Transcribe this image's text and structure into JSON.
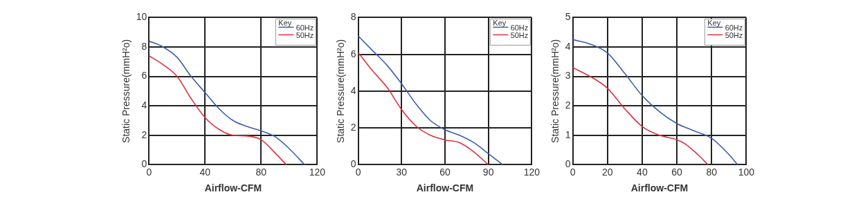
{
  "chart_data": [
    {
      "type": "line",
      "xlabel": "Airflow-CFM",
      "ylabel": "Static Pressure(mmH²o)",
      "xlim": [
        0,
        120
      ],
      "xticks": [
        0,
        40,
        80,
        120
      ],
      "ylim": [
        0,
        10
      ],
      "yticks": [
        0,
        2,
        4,
        6,
        8,
        10
      ],
      "grid": true,
      "legend": "top right",
      "legend_title": "Key",
      "marker": "none",
      "series": [
        {
          "name": "60Hz",
          "color": "#3a5fa8",
          "x": [
            0,
            10,
            20,
            30,
            40,
            50,
            60,
            70,
            80,
            90,
            100,
            111
          ],
          "values": [
            8.4,
            8.0,
            7.3,
            6.0,
            4.9,
            3.8,
            3.0,
            2.6,
            2.3,
            1.9,
            1.1,
            0
          ]
        },
        {
          "name": "50Hz",
          "color": "#e0303a",
          "x": [
            0,
            10,
            20,
            30,
            40,
            50,
            60,
            70,
            80,
            90,
            98
          ],
          "values": [
            7.4,
            6.8,
            6.0,
            4.5,
            3.2,
            2.4,
            2.0,
            1.95,
            1.7,
            0.8,
            0
          ]
        }
      ]
    },
    {
      "type": "line",
      "xlabel": "Airflow-CFM",
      "ylabel": "Static Pressure(mmH²o)",
      "xlim": [
        0,
        120
      ],
      "xticks": [
        0,
        30,
        60,
        90,
        120
      ],
      "ylim": [
        0,
        8
      ],
      "yticks": [
        0,
        2,
        4,
        6,
        8
      ],
      "grid": true,
      "legend": "top right",
      "legend_title": "Key",
      "marker": "none",
      "series": [
        {
          "name": "60Hz",
          "color": "#3a5fa8",
          "x": [
            0,
            10,
            20,
            30,
            40,
            50,
            60,
            70,
            80,
            90,
            100
          ],
          "values": [
            7.0,
            6.2,
            5.4,
            4.4,
            3.3,
            2.4,
            1.9,
            1.6,
            1.2,
            0.6,
            0
          ]
        },
        {
          "name": "50Hz",
          "color": "#e0303a",
          "x": [
            0,
            10,
            20,
            30,
            40,
            50,
            60,
            70,
            80,
            90
          ],
          "values": [
            6.1,
            5.1,
            4.2,
            3.0,
            2.1,
            1.6,
            1.35,
            1.2,
            0.7,
            0
          ]
        }
      ]
    },
    {
      "type": "line",
      "xlabel": "Airflow-CFM",
      "ylabel": "Static Pressure(mmH²o)",
      "xlim": [
        0,
        100
      ],
      "xticks": [
        0,
        20,
        40,
        60,
        80,
        100
      ],
      "ylim": [
        0,
        5
      ],
      "yticks": [
        0,
        1,
        2,
        3,
        4,
        5
      ],
      "grid": true,
      "legend": "top right",
      "legend_title": "Key",
      "marker": "none",
      "series": [
        {
          "name": "60Hz",
          "color": "#3a5fa8",
          "x": [
            0,
            10,
            20,
            30,
            40,
            50,
            60,
            70,
            80,
            90,
            95
          ],
          "values": [
            4.25,
            4.1,
            3.8,
            3.1,
            2.35,
            1.8,
            1.4,
            1.15,
            0.9,
            0.35,
            0
          ]
        },
        {
          "name": "50Hz",
          "color": "#e0303a",
          "x": [
            0,
            10,
            20,
            30,
            40,
            50,
            60,
            65,
            72,
            78
          ],
          "values": [
            3.3,
            3.0,
            2.6,
            1.9,
            1.3,
            1.0,
            0.85,
            0.7,
            0.35,
            0
          ]
        }
      ]
    }
  ]
}
